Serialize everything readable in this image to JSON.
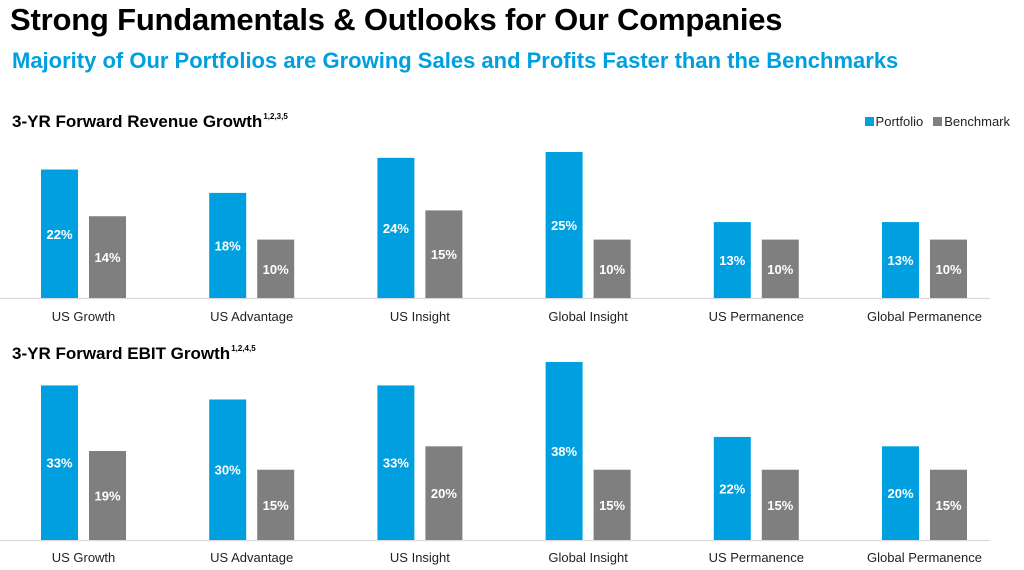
{
  "header": {
    "title": "Strong Fundamentals & Outlooks for Our Companies",
    "subtitle": "Majority of Our Portfolios are Growing Sales and Profits Faster than the Benchmarks"
  },
  "legend": {
    "portfolio_label": "Portfolio",
    "benchmark_label": "Benchmark",
    "portfolio_color": "#00a0e0",
    "benchmark_color": "#7f7f7f"
  },
  "chart_data": [
    {
      "type": "bar",
      "title": "3-YR Forward Revenue Growth",
      "title_footnote": "1,2,3,5",
      "xlabel": "",
      "ylabel": "",
      "ylim": [
        0,
        25
      ],
      "grid": false,
      "legend": "top-right",
      "categories": [
        "US Growth",
        "US Advantage",
        "US Insight",
        "Global Insight",
        "US Permanence",
        "Global Permanence"
      ],
      "series": [
        {
          "name": "Portfolio",
          "values": [
            22,
            18,
            24,
            25,
            13,
            13
          ],
          "labels": [
            "22%",
            "18%",
            "24%",
            "25%",
            "13%",
            "13%"
          ]
        },
        {
          "name": "Benchmark",
          "values": [
            14,
            10,
            15,
            10,
            10,
            10
          ],
          "labels": [
            "14%",
            "10%",
            "15%",
            "10%",
            "10%",
            "10%"
          ]
        }
      ]
    },
    {
      "type": "bar",
      "title": "3-YR Forward EBIT Growth",
      "title_footnote": "1,2,4,5",
      "xlabel": "",
      "ylabel": "",
      "ylim": [
        0,
        38
      ],
      "grid": false,
      "legend": "top-right",
      "categories": [
        "US Growth",
        "US Advantage",
        "US Insight",
        "Global Insight",
        "US Permanence",
        "Global Permanence"
      ],
      "series": [
        {
          "name": "Portfolio",
          "values": [
            33,
            30,
            33,
            38,
            22,
            20
          ],
          "labels": [
            "33%",
            "30%",
            "33%",
            "38%",
            "22%",
            "20%"
          ]
        },
        {
          "name": "Benchmark",
          "values": [
            19,
            15,
            20,
            15,
            15,
            15
          ],
          "labels": [
            "19%",
            "15%",
            "20%",
            "15%",
            "15%",
            "15%"
          ]
        }
      ]
    }
  ]
}
